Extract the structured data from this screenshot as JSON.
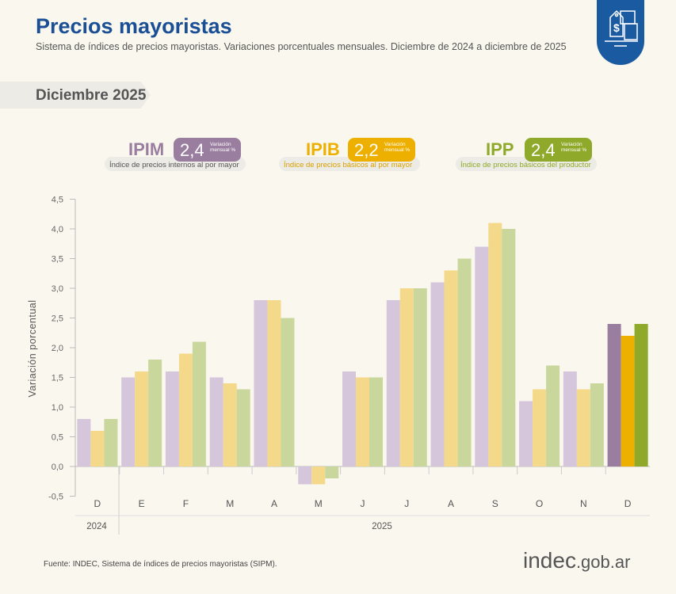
{
  "header": {
    "title": "Precios mayoristas",
    "subtitle": "Sistema de índices de precios mayoristas. Variaciones porcentuales mensuales. Diciembre de 2024 a diciembre de 2025",
    "period": "Diciembre 2025",
    "icon": "price-tag-boxes-icon"
  },
  "indicators": [
    {
      "name": "IPIM",
      "value": "2,4",
      "label": "Variación mensual %",
      "description": "Índice de precios internos al por mayor",
      "color": "#9a7ea0"
    },
    {
      "name": "IPIB",
      "value": "2,2",
      "label": "Variación mensual %",
      "description": "Índice de precios básicos al por mayor",
      "color": "#eeb000"
    },
    {
      "name": "IPP",
      "value": "2,4",
      "label": "Variación mensual %",
      "description": "Índice de precios básicos del productor",
      "color": "#8fa92a"
    }
  ],
  "chart_data": {
    "type": "bar",
    "ylabel": "Variación porcentual",
    "ylim": [
      -0.5,
      4.5
    ],
    "yticks": [
      "-0,5",
      "0,0",
      "0,5",
      "1,0",
      "1,5",
      "2,0",
      "2,5",
      "3,0",
      "3,5",
      "4,0",
      "4,5"
    ],
    "categories": [
      "D",
      "E",
      "F",
      "M",
      "A",
      "M",
      "J",
      "J",
      "A",
      "S",
      "O",
      "N",
      "D"
    ],
    "year_labels": [
      "2024",
      "2025"
    ],
    "series": [
      {
        "name": "IPIM",
        "color": "#d5c6dc",
        "highlight": "#9a7ea0",
        "values": [
          0.8,
          1.5,
          1.6,
          1.5,
          2.8,
          -0.3,
          1.6,
          2.8,
          3.1,
          3.7,
          1.1,
          1.6,
          2.4
        ]
      },
      {
        "name": "IPIB",
        "color": "#f5d98a",
        "highlight": "#eeb000",
        "values": [
          0.6,
          1.6,
          1.9,
          1.4,
          2.8,
          -0.3,
          1.5,
          3.0,
          3.3,
          4.1,
          1.3,
          1.3,
          2.2
        ]
      },
      {
        "name": "IPP",
        "color": "#c9d79c",
        "highlight": "#8fa92a",
        "values": [
          0.8,
          1.8,
          2.1,
          1.3,
          2.5,
          -0.2,
          1.5,
          3.0,
          3.5,
          4.0,
          1.7,
          1.4,
          2.4
        ]
      }
    ]
  },
  "footer": {
    "source": "Fuente: INDEC, Sistema de índices de precios mayoristas (SIPM).",
    "logo_main": "indec",
    "logo_domain": ".gob.ar"
  }
}
